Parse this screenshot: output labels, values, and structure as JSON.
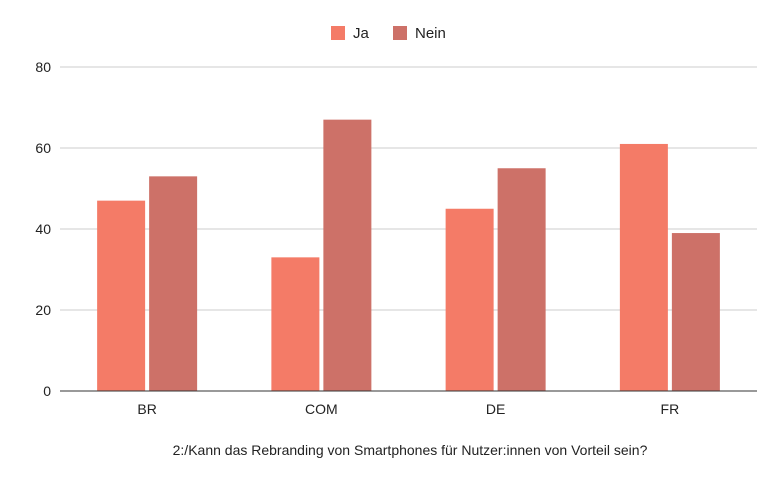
{
  "chart_data": {
    "type": "bar",
    "title": "",
    "xlabel": "2:/Kann das Rebranding von Smartphones für Nutzer:innen von Vorteil sein?",
    "ylabel": "",
    "categories": [
      "BR",
      "COM",
      "DE",
      "FR"
    ],
    "series": [
      {
        "name": "Ja",
        "values": [
          47,
          33,
          45,
          61
        ],
        "color": "#f47b67"
      },
      {
        "name": "Nein",
        "values": [
          53,
          67,
          55,
          39
        ],
        "color": "#cd7168"
      }
    ],
    "ylim": [
      0,
      80
    ],
    "yticks": [
      0,
      20,
      40,
      60,
      80
    ],
    "grid": true,
    "legend_position": "top-center"
  }
}
